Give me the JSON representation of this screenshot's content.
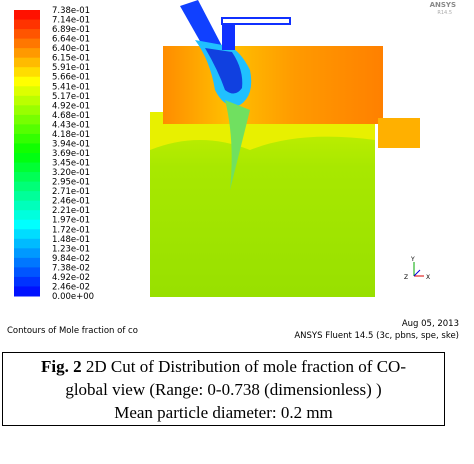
{
  "colorbar": {
    "labels": [
      "7.38e-01",
      "7.14e-01",
      "6.89e-01",
      "6.64e-01",
      "6.40e-01",
      "6.15e-01",
      "5.91e-01",
      "5.66e-01",
      "5.41e-01",
      "5.17e-01",
      "4.92e-01",
      "4.68e-01",
      "4.43e-01",
      "4.18e-01",
      "3.94e-01",
      "3.69e-01",
      "3.45e-01",
      "3.20e-01",
      "2.95e-01",
      "2.71e-01",
      "2.46e-01",
      "2.21e-01",
      "1.97e-01",
      "1.72e-01",
      "1.48e-01",
      "1.23e-01",
      "9.84e-02",
      "7.38e-02",
      "4.92e-02",
      "2.46e-02",
      "0.00e+00"
    ]
  },
  "logo": {
    "text": "ANSYS",
    "version": "R14.5"
  },
  "triad": {
    "y": "Y",
    "z": "Z",
    "x": "X"
  },
  "footer": {
    "left": "Contours of Mole fraction of co",
    "date": "Aug 05, 2013",
    "software": "ANSYS Fluent 14.5 (3c, pbns, spe, ske)"
  },
  "caption": {
    "label": "Fig. 2",
    "lines": [
      "2D Cut of Distribution of mole fraction of CO-",
      "global view (Range: 0-0.738 (dimensionless) )",
      "Mean particle diameter: 0.2 mm"
    ]
  }
}
